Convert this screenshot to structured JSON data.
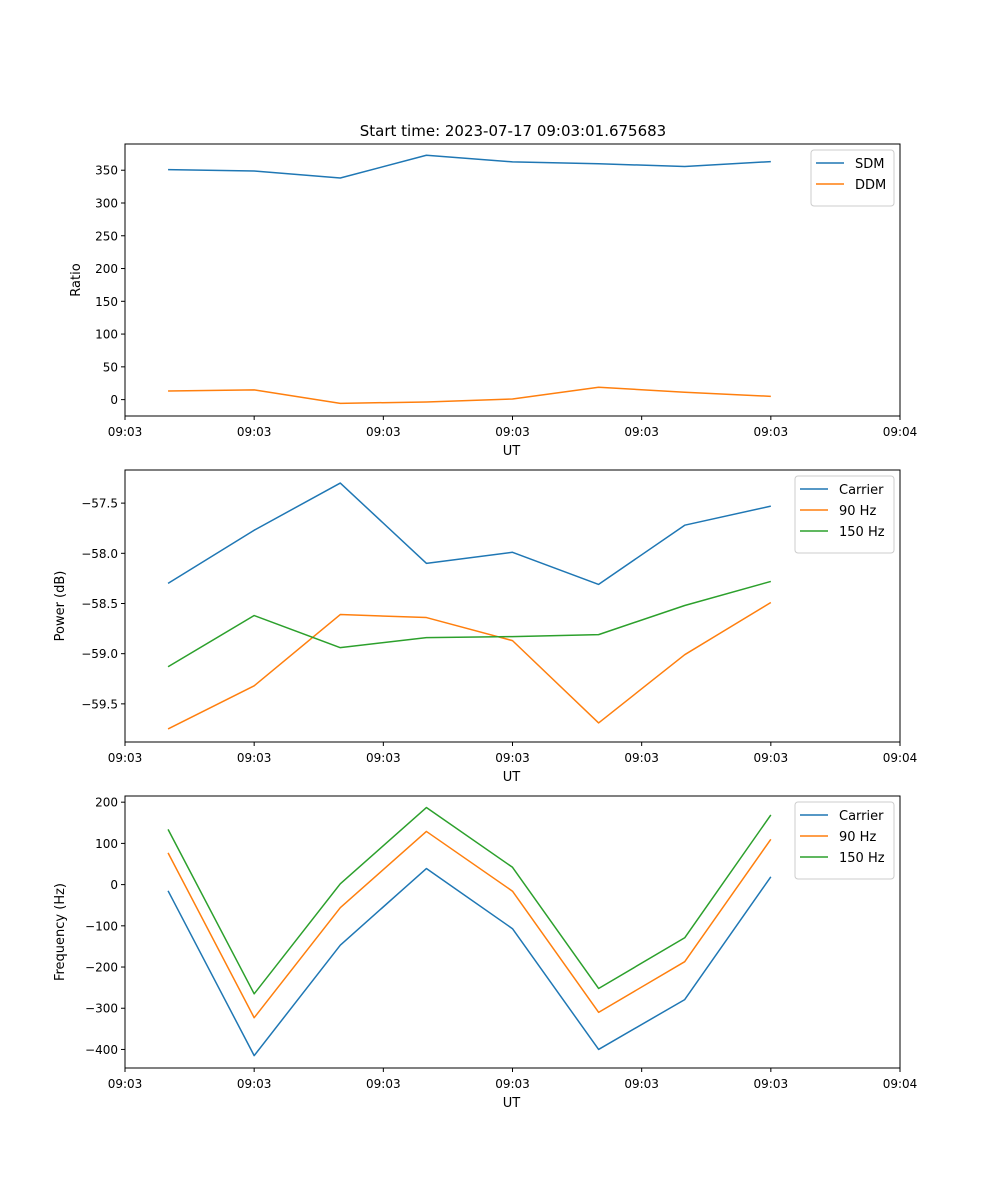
{
  "figure": {
    "title": "Start time: 2023-07-17 09:03:01.675683"
  },
  "chart_data": [
    {
      "type": "line",
      "title": "Start time: 2023-07-17 09:03:01.675683",
      "xlabel": "UT",
      "ylabel": "Ratio",
      "xlim": [
        0,
        9
      ],
      "ylim": [
        -25,
        390
      ],
      "x": [
        0.5,
        1.5,
        2.5,
        3.5,
        4.5,
        5.5,
        6.5,
        7.5
      ],
      "xticks": [
        0,
        1.5,
        3,
        4.5,
        6,
        7.5,
        9
      ],
      "xtick_labels": [
        "09:03",
        "09:03",
        "09:03",
        "09:03",
        "09:03",
        "09:03",
        "09:04"
      ],
      "yticks": [
        0,
        50,
        100,
        150,
        200,
        250,
        300,
        350
      ],
      "ytick_labels": [
        "0",
        "50",
        "100",
        "150",
        "200",
        "250",
        "300",
        "350"
      ],
      "legend_position": "top-right",
      "series": [
        {
          "name": "SDM",
          "color": "#1f77b4",
          "values": [
            350.9,
            348.8,
            338.1,
            372.8,
            362.7,
            359.9,
            355.6,
            363.2
          ]
        },
        {
          "name": "DDM",
          "color": "#ff7f0e",
          "values": [
            13.2,
            14.9,
            -5.7,
            -3.6,
            0.9,
            18.9,
            11.2,
            5.0
          ]
        }
      ]
    },
    {
      "type": "line",
      "title": "",
      "xlabel": "UT",
      "ylabel": "Power (dB)",
      "xlim": [
        0,
        9
      ],
      "ylim": [
        -59.88,
        -57.17
      ],
      "x": [
        0.5,
        1.5,
        2.5,
        3.5,
        4.5,
        5.5,
        6.5,
        7.5
      ],
      "xticks": [
        0,
        1.5,
        3,
        4.5,
        6,
        7.5,
        9
      ],
      "xtick_labels": [
        "09:03",
        "09:03",
        "09:03",
        "09:03",
        "09:03",
        "09:03",
        "09:04"
      ],
      "yticks": [
        -59.5,
        -59.0,
        -58.5,
        -58.0,
        -57.5
      ],
      "ytick_labels": [
        "−59.5",
        "−59.0",
        "−58.5",
        "−58.0",
        "−57.5"
      ],
      "legend_position": "top-right",
      "series": [
        {
          "name": "Carrier",
          "color": "#1f77b4",
          "values": [
            -58.3,
            -57.77,
            -57.3,
            -58.1,
            -57.99,
            -58.31,
            -57.72,
            -57.53
          ]
        },
        {
          "name": "90 Hz",
          "color": "#ff7f0e",
          "values": [
            -59.75,
            -59.32,
            -58.61,
            -58.64,
            -58.87,
            -59.69,
            -59.01,
            -58.49
          ]
        },
        {
          "name": "150 Hz",
          "color": "#2ca02c",
          "values": [
            -59.13,
            -58.62,
            -58.94,
            -58.84,
            -58.83,
            -58.81,
            -58.52,
            -58.28
          ]
        }
      ]
    },
    {
      "type": "line",
      "title": "",
      "xlabel": "UT",
      "ylabel": "Frequency (Hz)",
      "xlim": [
        0,
        9
      ],
      "ylim": [
        -445,
        215
      ],
      "x": [
        0.5,
        1.5,
        2.5,
        3.5,
        4.5,
        5.5,
        6.5,
        7.5
      ],
      "xticks": [
        0,
        1.5,
        3,
        4.5,
        6,
        7.5,
        9
      ],
      "xtick_labels": [
        "09:03",
        "09:03",
        "09:03",
        "09:03",
        "09:03",
        "09:03",
        "09:04"
      ],
      "yticks": [
        -400,
        -300,
        -200,
        -100,
        0,
        100,
        200
      ],
      "ytick_labels": [
        "−400",
        "−300",
        "−200",
        "−100",
        "0",
        "100",
        "200"
      ],
      "legend_position": "top-right",
      "series": [
        {
          "name": "Carrier",
          "color": "#1f77b4",
          "values": [
            -15,
            -415,
            -147,
            39,
            -107,
            -400,
            -279,
            19
          ]
        },
        {
          "name": "90 Hz",
          "color": "#ff7f0e",
          "values": [
            77,
            -323,
            -56,
            129,
            -16,
            -310,
            -187,
            110
          ]
        },
        {
          "name": "150 Hz",
          "color": "#2ca02c",
          "values": [
            134,
            -265,
            2,
            187,
            42,
            -252,
            -129,
            169
          ]
        }
      ]
    }
  ]
}
